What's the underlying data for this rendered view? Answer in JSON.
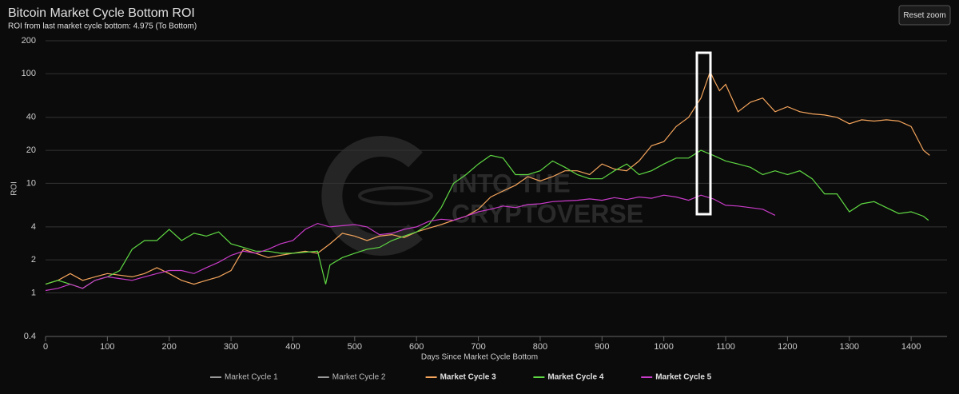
{
  "chart_data": {
    "type": "line",
    "title": "Bitcoin Market Cycle Bottom ROI",
    "subtitle": "ROI from last market cycle bottom: 4.975 (To Bottom)",
    "button": "Reset zoom",
    "watermark": [
      "INTO THE",
      "CRYPTOVERSE"
    ],
    "xlabel": "Days Since Market Cycle Bottom",
    "ylabel": "ROI",
    "log_y": true,
    "grid": true,
    "xlim": [
      0,
      1458
    ],
    "xticks": [
      0,
      100,
      200,
      300,
      400,
      500,
      600,
      700,
      800,
      900,
      1000,
      1100,
      1200,
      1300,
      1400
    ],
    "ylim": [
      0.4,
      200
    ],
    "yticks": [
      0.4,
      1,
      2,
      4,
      10,
      20,
      40,
      100,
      200
    ],
    "legend": "bottom",
    "series": [
      {
        "name": "Market Cycle 1",
        "color": "#999999",
        "hidden": true
      },
      {
        "name": "Market Cycle 2",
        "color": "#999999",
        "hidden": true
      },
      {
        "name": "Market Cycle 3",
        "color": "#f5a55c",
        "x": [
          0,
          20,
          40,
          60,
          80,
          100,
          120,
          140,
          160,
          180,
          200,
          220,
          240,
          260,
          280,
          300,
          320,
          340,
          360,
          380,
          400,
          420,
          440,
          460,
          480,
          500,
          520,
          540,
          560,
          580,
          600,
          620,
          640,
          660,
          680,
          700,
          720,
          740,
          760,
          780,
          800,
          820,
          840,
          860,
          880,
          900,
          920,
          940,
          960,
          980,
          1000,
          1020,
          1040,
          1060,
          1075,
          1080,
          1090,
          1100,
          1110,
          1120,
          1140,
          1160,
          1180,
          1200,
          1220,
          1240,
          1260,
          1280,
          1300,
          1320,
          1340,
          1360,
          1380,
          1400,
          1420,
          1430
        ],
        "values": [
          1.2,
          1.3,
          1.5,
          1.3,
          1.4,
          1.5,
          1.45,
          1.4,
          1.5,
          1.7,
          1.5,
          1.3,
          1.2,
          1.3,
          1.4,
          1.6,
          2.5,
          2.3,
          2.1,
          2.2,
          2.3,
          2.4,
          2.3,
          2.8,
          3.5,
          3.3,
          3.0,
          3.3,
          3.4,
          3.2,
          3.6,
          3.9,
          4.2,
          4.6,
          5.0,
          5.8,
          7.5,
          8.5,
          9.6,
          11.5,
          10.5,
          11.5,
          13,
          13,
          12,
          15,
          13.5,
          13,
          16,
          22,
          24,
          33,
          40,
          60,
          105,
          90,
          70,
          80,
          60,
          45,
          55,
          60,
          45,
          50,
          45,
          43,
          42,
          40,
          35,
          38,
          37,
          38,
          37,
          33,
          20,
          18
        ]
      },
      {
        "name": "Market Cycle 4",
        "color": "#5fd943",
        "x": [
          0,
          20,
          40,
          60,
          80,
          100,
          120,
          140,
          160,
          180,
          200,
          220,
          240,
          260,
          280,
          300,
          320,
          340,
          360,
          380,
          400,
          440,
          453,
          460,
          480,
          500,
          520,
          540,
          560,
          580,
          600,
          620,
          640,
          660,
          680,
          700,
          720,
          740,
          760,
          780,
          800,
          820,
          840,
          860,
          880,
          900,
          920,
          940,
          960,
          980,
          1000,
          1020,
          1040,
          1060,
          1080,
          1100,
          1120,
          1140,
          1160,
          1180,
          1200,
          1220,
          1240,
          1260,
          1280,
          1300,
          1320,
          1340,
          1360,
          1380,
          1400,
          1420,
          1428
        ],
        "values": [
          1.2,
          1.3,
          1.2,
          1.1,
          1.3,
          1.4,
          1.6,
          2.5,
          3.0,
          3.0,
          3.8,
          3.0,
          3.5,
          3.3,
          3.6,
          2.8,
          2.6,
          2.4,
          2.4,
          2.3,
          2.3,
          2.4,
          1.2,
          1.8,
          2.1,
          2.3,
          2.5,
          2.6,
          3.0,
          3.3,
          3.6,
          4.2,
          6.0,
          10,
          12,
          15,
          18,
          17,
          12,
          12,
          13,
          16,
          14,
          12,
          11,
          11,
          13,
          15,
          12,
          13,
          15,
          17,
          17,
          20,
          18,
          16,
          15,
          14,
          12,
          13,
          12,
          13,
          11,
          8,
          8,
          5.5,
          6.5,
          6.8,
          6.0,
          5.3,
          5.5,
          5.0,
          4.6
        ]
      },
      {
        "name": "Market Cycle 5",
        "color": "#c93bc9",
        "x": [
          0,
          20,
          40,
          60,
          80,
          100,
          120,
          140,
          160,
          180,
          200,
          220,
          240,
          260,
          280,
          300,
          320,
          340,
          360,
          380,
          400,
          420,
          440,
          460,
          480,
          500,
          520,
          540,
          560,
          580,
          600,
          620,
          640,
          660,
          680,
          700,
          720,
          740,
          760,
          780,
          800,
          820,
          840,
          860,
          880,
          900,
          920,
          940,
          960,
          980,
          1000,
          1020,
          1040,
          1060,
          1080,
          1100,
          1120,
          1140,
          1160,
          1180
        ],
        "values": [
          1.05,
          1.1,
          1.2,
          1.1,
          1.3,
          1.4,
          1.35,
          1.3,
          1.4,
          1.5,
          1.6,
          1.6,
          1.5,
          1.7,
          1.9,
          2.2,
          2.4,
          2.3,
          2.5,
          2.8,
          3.0,
          3.8,
          4.3,
          4.0,
          4.1,
          4.2,
          4.0,
          3.4,
          3.5,
          3.8,
          4.0,
          4.5,
          4.7,
          4.6,
          5.0,
          5.5,
          5.8,
          6.2,
          6.0,
          6.4,
          6.5,
          6.8,
          6.9,
          7.0,
          7.2,
          7.0,
          7.4,
          7.1,
          7.5,
          7.3,
          7.8,
          7.5,
          7.0,
          7.8,
          7.2,
          6.3,
          6.2,
          6.0,
          5.8,
          5.1
        ]
      }
    ]
  }
}
